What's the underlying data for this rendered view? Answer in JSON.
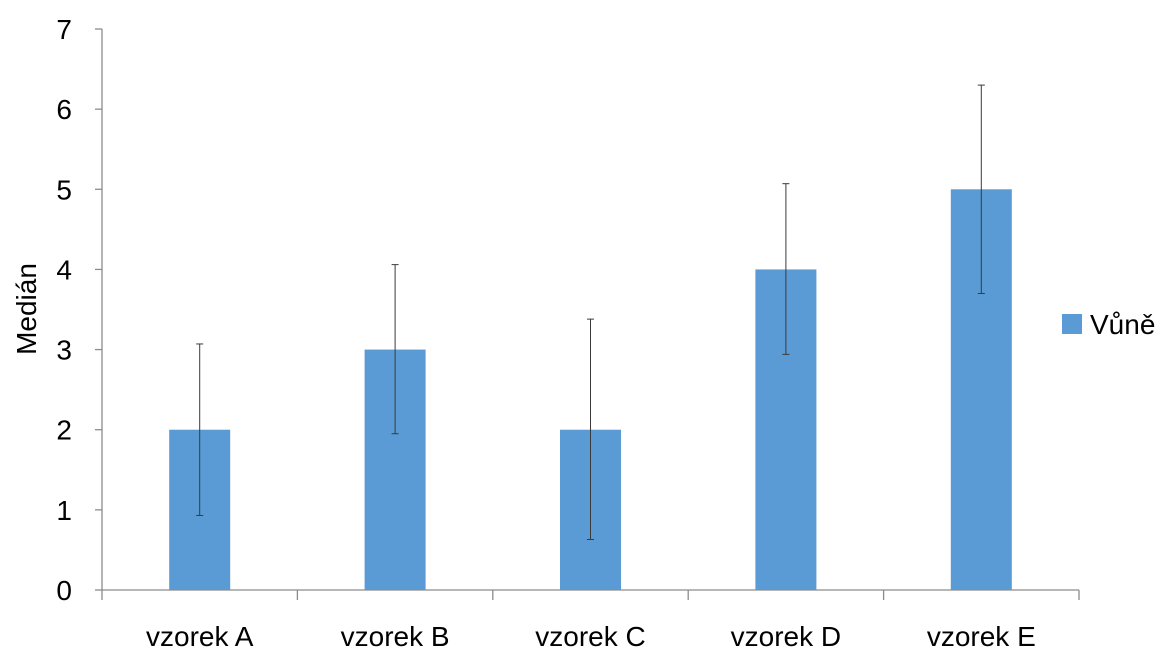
{
  "chart_data": {
    "type": "bar",
    "title": "",
    "xlabel": "",
    "ylabel": "Medián",
    "categories": [
      "vzorek A",
      "vzorek B",
      "vzorek C",
      "vzorek D",
      "vzorek E"
    ],
    "series": [
      {
        "name": "Vůně",
        "color": "#5b9bd5",
        "values": [
          2,
          3,
          2,
          4,
          5
        ],
        "error_low": [
          0.93,
          1.95,
          0.63,
          2.94,
          3.7
        ],
        "error_high": [
          3.07,
          4.06,
          3.38,
          5.07,
          6.3
        ]
      }
    ],
    "ylim": [
      0,
      7
    ],
    "yticks": [
      "0",
      "1",
      "2",
      "3",
      "4",
      "5",
      "6",
      "7"
    ],
    "grid": false,
    "legend_position": "right"
  }
}
